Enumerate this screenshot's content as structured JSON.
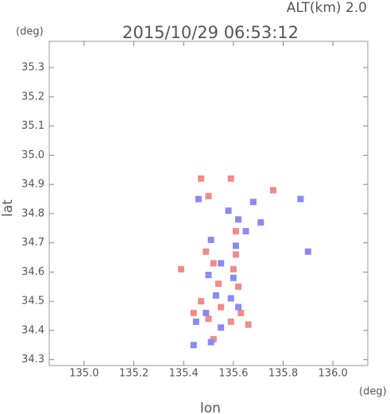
{
  "chart_data": {
    "type": "scatter",
    "title": "2015/10/29 06:53:12",
    "annotation": "ALT(km) 2.0",
    "x_unit": "(deg)",
    "y_unit": "(deg)",
    "xlabel": "lon",
    "ylabel": "lat",
    "xlim": [
      134.86,
      136.14
    ],
    "ylim": [
      34.28,
      35.39
    ],
    "xticks": [
      {
        "value": 135.0,
        "label": "135.0"
      },
      135.2,
      135.4,
      135.6,
      135.8,
      {
        "value": 136.0,
        "label": "136.0"
      }
    ],
    "yticks": [
      34.3,
      34.4,
      34.5,
      34.6,
      34.7,
      34.8,
      34.9,
      {
        "value": 35.0,
        "label": "35.0"
      },
      35.1,
      35.2,
      35.3
    ],
    "series": [
      {
        "color": "#f28a8a",
        "x": [
          135.47,
          135.59,
          135.5,
          135.49,
          135.61,
          135.52,
          135.6,
          135.54,
          135.62,
          135.47,
          135.55,
          135.63,
          135.5,
          135.59,
          135.66,
          135.44,
          135.39,
          135.76,
          135.61,
          135.52
        ],
        "values": [
          34.92,
          34.92,
          34.86,
          34.67,
          34.66,
          34.63,
          34.61,
          34.56,
          34.55,
          34.5,
          34.48,
          34.46,
          34.44,
          34.43,
          34.42,
          34.46,
          34.61,
          34.88,
          34.74,
          34.37
        ]
      },
      {
        "color": "#8a8af2",
        "x": [
          135.46,
          135.58,
          135.68,
          135.62,
          135.51,
          135.61,
          135.55,
          135.5,
          135.6,
          135.53,
          135.59,
          135.49,
          135.55,
          135.62,
          135.45,
          135.44,
          135.51,
          135.9,
          135.87,
          135.71,
          135.65
        ],
        "values": [
          34.85,
          34.81,
          34.84,
          34.78,
          34.71,
          34.69,
          34.63,
          34.59,
          34.58,
          34.52,
          34.51,
          34.46,
          34.41,
          34.48,
          34.43,
          34.35,
          34.36,
          34.67,
          34.85,
          34.77,
          34.74
        ]
      }
    ]
  }
}
